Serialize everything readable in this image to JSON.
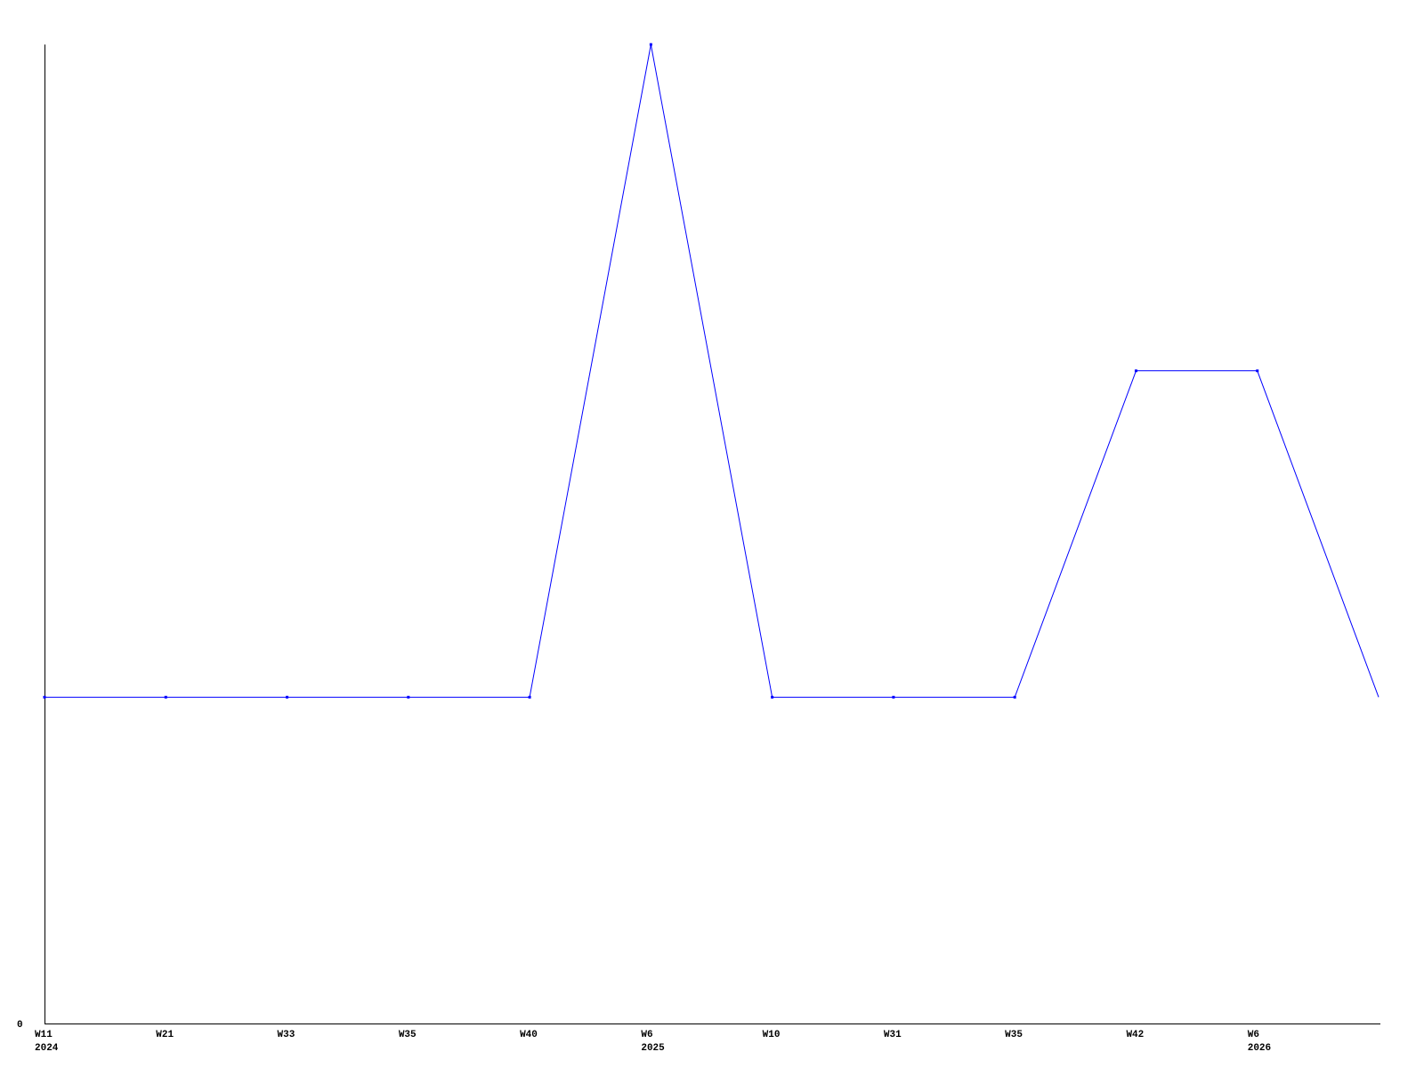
{
  "chart_data": {
    "type": "line",
    "title": "",
    "xlabel": "",
    "ylabel": "",
    "categories": [
      {
        "week": "W11",
        "year": "2024"
      },
      {
        "week": "W21",
        "year": ""
      },
      {
        "week": "W33",
        "year": ""
      },
      {
        "week": "W35",
        "year": ""
      },
      {
        "week": "W40",
        "year": ""
      },
      {
        "week": "W6",
        "year": "2025"
      },
      {
        "week": "W10",
        "year": ""
      },
      {
        "week": "W31",
        "year": ""
      },
      {
        "week": "W35",
        "year": ""
      },
      {
        "week": "W42",
        "year": ""
      },
      {
        "week": "W6",
        "year": "2026"
      },
      {
        "week": "",
        "year": ""
      }
    ],
    "series": [
      {
        "values": [
          1,
          1,
          1,
          1,
          1,
          3,
          1,
          1,
          1,
          2,
          2,
          1
        ],
        "color": "#0000ff"
      }
    ],
    "y_tick_labels": [
      "0"
    ],
    "ylim": [
      0,
      3
    ],
    "grid": false,
    "legend": "none",
    "axis_color": "#000000"
  }
}
